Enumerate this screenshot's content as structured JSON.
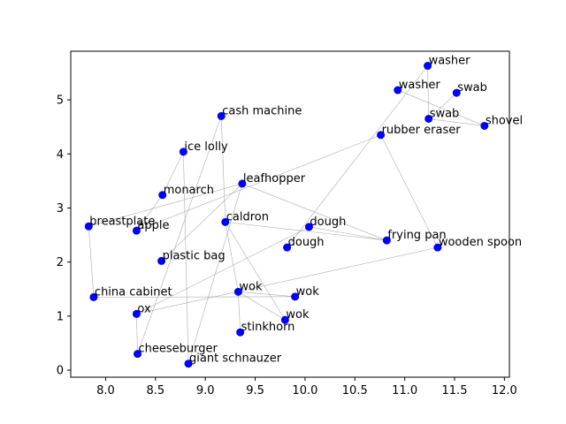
{
  "chart_data": {
    "type": "scatter",
    "title": "",
    "xlabel": "",
    "ylabel": "",
    "xlim": [
      7.65,
      12.05
    ],
    "ylim": [
      -0.13,
      5.9
    ],
    "xticks": [
      8.0,
      8.5,
      9.0,
      9.5,
      10.0,
      10.5,
      11.0,
      11.5,
      12.0
    ],
    "yticks": [
      0,
      1,
      2,
      3,
      4,
      5
    ],
    "xtick_labels": [
      "8.0",
      "8.5",
      "9.0",
      "9.5",
      "10.0",
      "10.5",
      "11.0",
      "11.5",
      "12.0"
    ],
    "ytick_labels": [
      "0",
      "1",
      "2",
      "3",
      "4",
      "5"
    ],
    "grid": false,
    "point_color": "#0000ff",
    "edge_color": "#999999",
    "points": [
      {
        "label": "washer",
        "x": 11.23,
        "y": 5.63
      },
      {
        "label": "washer",
        "x": 10.93,
        "y": 5.18
      },
      {
        "label": "swab",
        "x": 11.52,
        "y": 5.13
      },
      {
        "label": "swab",
        "x": 11.24,
        "y": 4.65
      },
      {
        "label": "shovel",
        "x": 11.8,
        "y": 4.52
      },
      {
        "label": "rubber eraser",
        "x": 10.76,
        "y": 4.35
      },
      {
        "label": "cash machine",
        "x": 9.16,
        "y": 4.7
      },
      {
        "label": "ice lolly",
        "x": 8.78,
        "y": 4.04
      },
      {
        "label": "leafhopper",
        "x": 9.37,
        "y": 3.45
      },
      {
        "label": "monarch",
        "x": 8.57,
        "y": 3.24
      },
      {
        "label": "breastplate",
        "x": 7.83,
        "y": 2.66
      },
      {
        "label": "apple",
        "x": 8.31,
        "y": 2.58
      },
      {
        "label": "caldron",
        "x": 9.2,
        "y": 2.74
      },
      {
        "label": "dough",
        "x": 10.04,
        "y": 2.65
      },
      {
        "label": "dough",
        "x": 9.82,
        "y": 2.27
      },
      {
        "label": "frying pan",
        "x": 10.82,
        "y": 2.4
      },
      {
        "label": "wooden spoon",
        "x": 11.33,
        "y": 2.27
      },
      {
        "label": "plastic bag",
        "x": 8.56,
        "y": 2.02
      },
      {
        "label": "china cabinet",
        "x": 7.88,
        "y": 1.35
      },
      {
        "label": "wok",
        "x": 9.33,
        "y": 1.45
      },
      {
        "label": "wok",
        "x": 9.9,
        "y": 1.36
      },
      {
        "label": "ox",
        "x": 8.31,
        "y": 1.04
      },
      {
        "label": "wok",
        "x": 9.8,
        "y": 0.93
      },
      {
        "label": "stinkhorn",
        "x": 9.35,
        "y": 0.7
      },
      {
        "label": "cheeseburger",
        "x": 8.32,
        "y": 0.3
      },
      {
        "label": "giant schnauzer",
        "x": 8.83,
        "y": 0.12
      }
    ],
    "edges": [
      [
        0,
        3
      ],
      [
        0,
        14
      ],
      [
        1,
        4
      ],
      [
        2,
        3
      ],
      [
        3,
        4
      ],
      [
        5,
        11
      ],
      [
        5,
        16
      ],
      [
        6,
        12
      ],
      [
        6,
        24
      ],
      [
        7,
        9
      ],
      [
        7,
        25
      ],
      [
        8,
        10
      ],
      [
        8,
        15
      ],
      [
        8,
        17
      ],
      [
        9,
        11
      ],
      [
        10,
        18
      ],
      [
        12,
        15
      ],
      [
        12,
        19
      ],
      [
        12,
        22
      ],
      [
        13,
        15
      ],
      [
        13,
        21
      ],
      [
        16,
        21
      ],
      [
        19,
        20
      ],
      [
        19,
        22
      ],
      [
        19,
        23
      ],
      [
        18,
        20
      ],
      [
        21,
        24
      ],
      [
        8,
        25
      ]
    ]
  }
}
